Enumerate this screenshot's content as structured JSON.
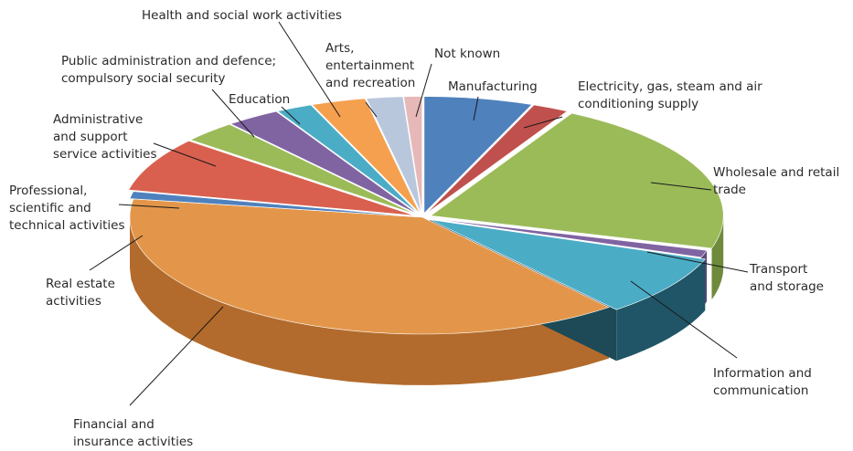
{
  "chart_data": {
    "type": "pie",
    "style": "3d-exploded",
    "categories": [
      "Manufacturing",
      "Electricity, gas, steam and air conditioning supply",
      "Wholesale and retail trade",
      "Transport and storage",
      "Information and communication",
      "Financial and insurance activities",
      "Real estate activities",
      "Professional, scientific and technical activities",
      "Administrative and support service activities",
      "Public administration and defence; compulsory social security",
      "Education",
      "Health and social work activities",
      "Arts, entertainment and recreation",
      "Not known"
    ],
    "values": [
      6.0,
      2.0,
      21.5,
      1.0,
      8.5,
      38.5,
      1.0,
      7.5,
      3.0,
      3.0,
      2.0,
      3.0,
      2.0,
      1.0
    ],
    "colors": [
      "#4f81bd",
      "#c0504d",
      "#9bbb59",
      "#8064a2",
      "#4bacc6",
      "#e3964a",
      "#4f81bd",
      "#d9604f",
      "#9bbb59",
      "#8064a2",
      "#4bacc6",
      "#f5a04e",
      "#b9c7dd",
      "#e6b9b8"
    ],
    "side_colors": [
      "#3a6090",
      "#903b39",
      "#6f8a3a",
      "#5e4a7a",
      "#1f5566",
      "#b26b2c",
      "#3a6090",
      "#a34539",
      "#6f8a3a",
      "#5e4a7a",
      "#2f7c90",
      "#b6722f",
      "#8a96aa",
      "#b08584"
    ],
    "labels": [
      "Manufacturing",
      "Electricity, gas, steam and air\nconditioning supply",
      "Wholesale and retail\ntrade",
      "Transport\nand storage",
      "Information and\ncommunication",
      "Financial and\ninsurance activities",
      "Real estate\nactivities",
      "Professional,\nscientific and\ntechnical activities",
      "Administrative\nand support\nservice activities",
      "Public administration and defence;\ncompulsory social security",
      "Education",
      "Health and social work activities",
      "Arts,\nentertainment\nand recreation",
      "Not known"
    ],
    "title": "",
    "legend": "none"
  }
}
